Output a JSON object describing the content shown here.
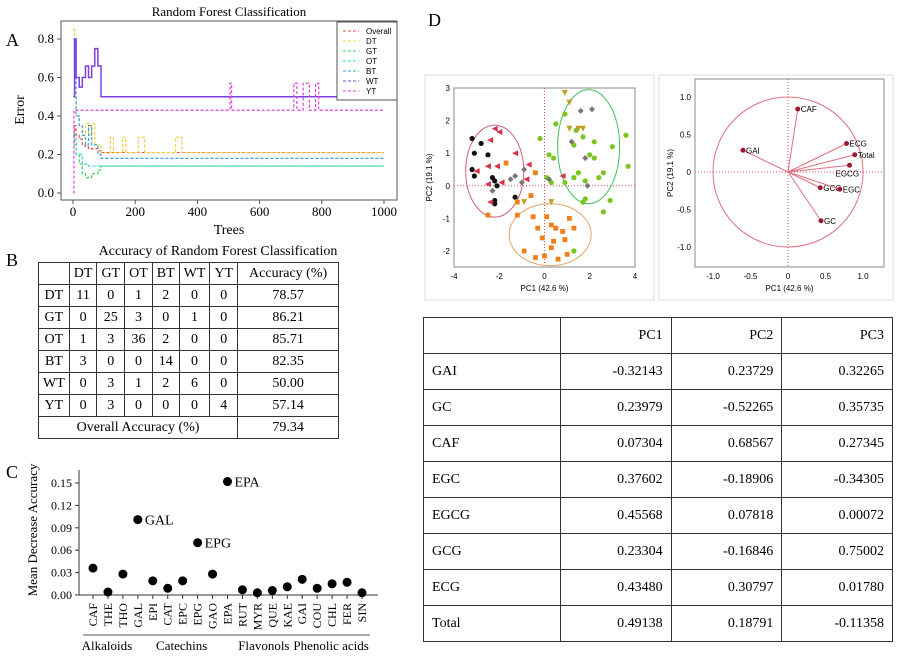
{
  "panel_labels": {
    "a": "A",
    "b": "B",
    "c": "C",
    "d": "D"
  },
  "chart_data": [
    {
      "type": "line",
      "panel": "A",
      "title": "Random Forest Classification",
      "xlabel": "Trees",
      "ylabel": "Error",
      "xlim": [
        0,
        1000
      ],
      "ylim": [
        0,
        0.85
      ],
      "xticks": [
        0,
        200,
        400,
        600,
        800,
        1000
      ],
      "yticks": [
        0.0,
        0.2,
        0.4,
        0.6,
        0.8
      ],
      "legend": "top-right",
      "series": [
        {
          "name": "Overall",
          "color": "#e8524a",
          "x": [
            1,
            5,
            10,
            20,
            30,
            40,
            50,
            60,
            70,
            80,
            90,
            100,
            1000
          ],
          "y": [
            0.3,
            0.35,
            0.3,
            0.28,
            0.25,
            0.24,
            0.23,
            0.23,
            0.23,
            0.22,
            0.21,
            0.21,
            0.21
          ]
        },
        {
          "name": "DT",
          "color": "#f2cc3a",
          "x": [
            1,
            5,
            10,
            20,
            30,
            40,
            50,
            60,
            70,
            80,
            90,
            100,
            120,
            130,
            160,
            170,
            210,
            230,
            330,
            350,
            360,
            1000
          ],
          "y": [
            0.85,
            0.5,
            0.4,
            0.35,
            0.3,
            0.36,
            0.3,
            0.36,
            0.25,
            0.25,
            0.21,
            0.21,
            0.29,
            0.21,
            0.29,
            0.21,
            0.29,
            0.21,
            0.29,
            0.21,
            0.21,
            0.21
          ]
        },
        {
          "name": "GT",
          "color": "#3ccf5a",
          "x": [
            1,
            5,
            10,
            20,
            30,
            40,
            50,
            60,
            70,
            80,
            90,
            100,
            1000
          ],
          "y": [
            0.3,
            0.25,
            0.2,
            0.15,
            0.1,
            0.08,
            0.08,
            0.1,
            0.1,
            0.12,
            0.14,
            0.14,
            0.14
          ]
        },
        {
          "name": "OT",
          "color": "#30d0d0",
          "x": [
            1,
            5,
            10,
            20,
            30,
            40,
            50,
            60,
            1000
          ],
          "y": [
            0.3,
            0.3,
            0.2,
            0.2,
            0.15,
            0.15,
            0.14,
            0.14,
            0.14
          ]
        },
        {
          "name": "BT",
          "color": "#3aa0e0",
          "x": [
            1,
            5,
            10,
            20,
            30,
            40,
            50,
            60,
            70,
            80,
            90,
            1000
          ],
          "y": [
            0.8,
            0.6,
            0.4,
            0.35,
            0.3,
            0.25,
            0.35,
            0.25,
            0.25,
            0.2,
            0.18,
            0.18
          ]
        },
        {
          "name": "WT",
          "color": "#7b3fe0",
          "x": [
            1,
            5,
            10,
            20,
            30,
            40,
            50,
            60,
            70,
            80,
            90,
            1000
          ],
          "y": [
            0.5,
            0.8,
            0.6,
            0.55,
            0.6,
            0.66,
            0.6,
            0.66,
            0.75,
            0.66,
            0.5,
            0.5
          ]
        },
        {
          "name": "YT",
          "color": "#e040e0",
          "x": [
            1,
            3,
            500,
            505,
            510,
            700,
            710,
            720,
            740,
            760,
            780,
            790,
            1000
          ],
          "y": [
            0,
            0.43,
            0.43,
            0.57,
            0.43,
            0.43,
            0.57,
            0.43,
            0.57,
            0.43,
            0.57,
            0.43,
            0.43
          ]
        }
      ]
    },
    {
      "type": "table",
      "panel": "B",
      "title": "Accuracy of Random Forest Classification",
      "columns": [
        "",
        "DT",
        "GT",
        "OT",
        "BT",
        "WT",
        "YT",
        "Accuracy (%)"
      ],
      "rows": [
        [
          "DT",
          "11",
          "0",
          "1",
          "2",
          "0",
          "0",
          "78.57"
        ],
        [
          "GT",
          "0",
          "25",
          "3",
          "0",
          "1",
          "0",
          "86.21"
        ],
        [
          "OT",
          "1",
          "3",
          "36",
          "2",
          "0",
          "0",
          "85.71"
        ],
        [
          "BT",
          "3",
          "0",
          "0",
          "14",
          "0",
          "0",
          "82.35"
        ],
        [
          "WT",
          "0",
          "3",
          "1",
          "2",
          "6",
          "0",
          "50.00"
        ],
        [
          "YT",
          "0",
          "3",
          "0",
          "0",
          "0",
          "4",
          "57.14"
        ]
      ],
      "overall_label": "Overall Accuracy (%)",
      "overall_value": "79.34"
    },
    {
      "type": "scatter",
      "panel": "C",
      "ylabel": "Mean Decrease Accuracy",
      "ylim": [
        0,
        0.16
      ],
      "yticks": [
        "0.00",
        "0.03",
        "0.06",
        "0.09",
        "0.12",
        "0.15"
      ],
      "categories": [
        "CAF",
        "THE",
        "THO",
        "GAL",
        "EPI",
        "CAT",
        "EPC",
        "EPG",
        "GAO",
        "EPA",
        "RUT",
        "MYR",
        "QUE",
        "KAE",
        "GAI",
        "COU",
        "CHL",
        "FER",
        "SIN"
      ],
      "values": [
        0.036,
        0.004,
        0.028,
        0.101,
        0.019,
        0.009,
        0.019,
        0.07,
        0.028,
        0.152,
        0.007,
        0.003,
        0.006,
        0.011,
        0.021,
        0.009,
        0.015,
        0.017,
        0.003
      ],
      "point_labels": {
        "GAL": "GAL",
        "EPG": "EPG",
        "EPA": "EPA"
      },
      "groups": [
        {
          "name": "Alkaloids",
          "from": 0,
          "to": 2
        },
        {
          "name": "Catechins",
          "from": 3,
          "to": 9
        },
        {
          "name": "Flavonols",
          "from": 10,
          "to": 13
        },
        {
          "name": "Phenolic acids",
          "from": 14,
          "to": 18
        }
      ]
    },
    {
      "type": "scatter",
      "panel": "D-scores",
      "xlabel": "PC1  (42.6 %)",
      "ylabel": "PC2  (19.1 %)",
      "xlim": [
        -4,
        4
      ],
      "ylim": [
        -2.5,
        3
      ],
      "xticks": [
        "-4",
        "-2",
        "0",
        "2",
        "4"
      ],
      "yticks": [
        "-2",
        "-1",
        "0",
        "1",
        "2",
        "3"
      ],
      "groups": [
        {
          "color": "#111111",
          "marker": "circle",
          "points": [
            [
              -3.2,
              1.45
            ],
            [
              -2.8,
              1.3
            ],
            [
              -3.1,
              1.0
            ],
            [
              -2.5,
              0.95
            ],
            [
              -3.2,
              0.5
            ],
            [
              -3.1,
              0.3
            ],
            [
              -2.3,
              0.25
            ],
            [
              -2.2,
              0.15
            ],
            [
              -2.1,
              0
            ],
            [
              -2.2,
              -0.45
            ],
            [
              -2.2,
              -0.55
            ],
            [
              -1.3,
              -0.35
            ]
          ]
        },
        {
          "color": "#d8304a",
          "marker": "triangle-left",
          "points": [
            [
              -2.2,
              1.75
            ],
            [
              -2.0,
              1.65
            ],
            [
              -2.4,
              1.4
            ],
            [
              -1.3,
              1.0
            ],
            [
              -2.5,
              0.6
            ],
            [
              -2.1,
              0.6
            ],
            [
              -3.0,
              0.45
            ],
            [
              -2.5,
              0.05
            ],
            [
              -1.9,
              0.1
            ],
            [
              -0.7,
              0.65
            ],
            [
              -0.8,
              0.2
            ],
            [
              0.8,
              0.3
            ],
            [
              -2.4,
              -0.5
            ]
          ]
        },
        {
          "color": "#f07f1a",
          "marker": "square",
          "points": [
            [
              -1.7,
              0.7
            ],
            [
              -0.4,
              0.4
            ],
            [
              -0.6,
              -0.3
            ],
            [
              -1.2,
              -0.5
            ],
            [
              -2.5,
              -0.9
            ],
            [
              -1.2,
              -0.9
            ],
            [
              -0.5,
              -0.95
            ],
            [
              0.1,
              -0.95
            ],
            [
              1.1,
              -1.0
            ],
            [
              -0.3,
              -1.3
            ],
            [
              0.3,
              -1.2
            ],
            [
              0.5,
              -1.3
            ],
            [
              0.8,
              -1.4
            ],
            [
              1.3,
              -1.3
            ],
            [
              -0.1,
              -1.6
            ],
            [
              0.4,
              -1.7
            ],
            [
              0.9,
              -1.65
            ],
            [
              -0.9,
              -2.0
            ],
            [
              -0.4,
              -2.2
            ],
            [
              0,
              -2.15
            ],
            [
              0.6,
              -2.25
            ],
            [
              0.3,
              -1.9
            ],
            [
              1.0,
              -2.1
            ]
          ]
        },
        {
          "color": "#7cc520",
          "marker": "circle",
          "points": [
            [
              0.9,
              2.2
            ],
            [
              0.5,
              1.9
            ],
            [
              1.4,
              1.7
            ],
            [
              1.7,
              1.5
            ],
            [
              -0.2,
              1.45
            ],
            [
              2.2,
              1.35
            ],
            [
              1.3,
              1.25
            ],
            [
              3.6,
              1.55
            ],
            [
              3.0,
              1.2
            ],
            [
              0.2,
              0.95
            ],
            [
              0.4,
              0.85
            ],
            [
              2.0,
              0.95
            ],
            [
              2.2,
              0.85
            ],
            [
              1.5,
              0.4
            ],
            [
              2.6,
              0.4
            ],
            [
              2.4,
              0.25
            ],
            [
              3.7,
              0.6
            ],
            [
              0.1,
              0.25
            ],
            [
              0.3,
              0.1
            ],
            [
              0.9,
              0.1
            ],
            [
              1.3,
              0.25
            ],
            [
              1.8,
              0.15
            ],
            [
              1.8,
              -0.4
            ],
            [
              1.7,
              -0.5
            ],
            [
              2.9,
              -0.45
            ],
            [
              2.6,
              -0.8
            ],
            [
              1.3,
              -2.0
            ]
          ]
        },
        {
          "color": "#777777",
          "marker": "diamond",
          "points": [
            [
              1.6,
              2.3
            ],
            [
              2.1,
              2.35
            ],
            [
              1.2,
              1.35
            ],
            [
              1.8,
              0.85
            ],
            [
              -1.5,
              0.2
            ],
            [
              -1.3,
              0.3
            ],
            [
              -1.0,
              0.1
            ],
            [
              -0.9,
              0.5
            ],
            [
              0.2,
              0.2
            ],
            [
              1.9,
              0
            ],
            [
              -2.3,
              -0.15
            ]
          ]
        },
        {
          "color": "#c0a020",
          "marker": "triangle-down",
          "points": [
            [
              0.9,
              2.85
            ],
            [
              1.1,
              2.55
            ],
            [
              1.1,
              1.75
            ],
            [
              1.5,
              1.75
            ],
            [
              1.7,
              1.75
            ],
            [
              0.3,
              -0.5
            ],
            [
              -0.9,
              -0.5
            ]
          ]
        }
      ]
    },
    {
      "type": "scatter",
      "panel": "D-loadings",
      "xlabel": "PC1  (42.6 %)",
      "ylabel": "PC2  (19.1 %)",
      "xlim": [
        -1.25,
        1.25
      ],
      "ylim": [
        -1.25,
        1.25
      ],
      "xticks": [
        "-1.0",
        "-0.5",
        "0",
        "0.5",
        "1.0"
      ],
      "yticks": [
        "-1.0",
        "-0.5",
        "0",
        "0.5",
        "1.0"
      ],
      "points": [
        {
          "label": "CAF",
          "x": 0.13,
          "y": 0.84
        },
        {
          "label": "GAI",
          "x": -0.6,
          "y": 0.29
        },
        {
          "label": "ECG",
          "x": 0.78,
          "y": 0.38
        },
        {
          "label": "Total",
          "x": 0.89,
          "y": 0.23
        },
        {
          "label": "EGCG",
          "x": 0.82,
          "y": 0.09
        },
        {
          "label": "GCG",
          "x": 0.43,
          "y": -0.21
        },
        {
          "label": "EGC",
          "x": 0.69,
          "y": -0.23
        },
        {
          "label": "GC",
          "x": 0.44,
          "y": -0.65
        }
      ]
    },
    {
      "type": "table",
      "panel": "D-table",
      "columns": [
        "",
        "PC1",
        "PC2",
        "PC3"
      ],
      "rows": [
        [
          "GAI",
          "-0.32143",
          "0.23729",
          "0.32265"
        ],
        [
          "GC",
          "0.23979",
          "-0.52265",
          "0.35735"
        ],
        [
          "CAF",
          "0.07304",
          "0.68567",
          "0.27345"
        ],
        [
          "EGC",
          "0.37602",
          "-0.18906",
          "-0.34305"
        ],
        [
          "EGCG",
          "0.45568",
          "0.07818",
          "0.00072"
        ],
        [
          "GCG",
          "0.23304",
          "-0.16846",
          "0.75002"
        ],
        [
          "ECG",
          "0.43480",
          "0.30797",
          "0.01780"
        ],
        [
          "Total",
          "0.49138",
          "0.18791",
          "-0.11358"
        ]
      ]
    }
  ]
}
